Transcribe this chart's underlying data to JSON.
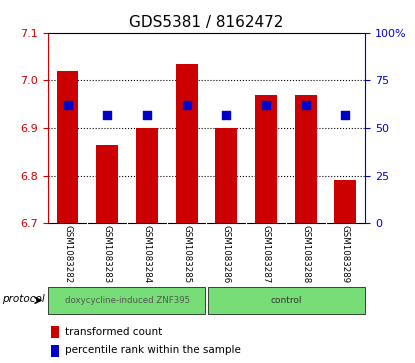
{
  "title": "GDS5381 / 8162472",
  "samples": [
    "GSM1083282",
    "GSM1083283",
    "GSM1083284",
    "GSM1083285",
    "GSM1083286",
    "GSM1083287",
    "GSM1083288",
    "GSM1083289"
  ],
  "bar_values": [
    7.02,
    6.865,
    6.9,
    7.035,
    6.9,
    6.97,
    6.97,
    6.79
  ],
  "percentile_values": [
    62,
    57,
    57,
    62,
    57,
    62,
    62,
    57
  ],
  "bar_bottom": 6.7,
  "ylim_left": [
    6.7,
    7.1
  ],
  "ylim_right": [
    0,
    100
  ],
  "yticks_left": [
    6.7,
    6.8,
    6.9,
    7.0,
    7.1
  ],
  "yticks_right": [
    0,
    25,
    50,
    75,
    100
  ],
  "ytick_labels_right": [
    "0",
    "25",
    "50",
    "75",
    "100%"
  ],
  "bar_color": "#CC0000",
  "percentile_color": "#0000CC",
  "group1_label": "doxycycline-induced ZNF395",
  "group2_label": "control",
  "group_color": "#77DD77",
  "legend_bar_label": "transformed count",
  "legend_pct_label": "percentile rank within the sample",
  "protocol_label": "protocol",
  "tick_color_left": "#CC0000",
  "tick_color_right": "#0000CC",
  "bg_color": "#FFFFFF",
  "xticklabel_bg": "#C8C8C8",
  "title_fontsize": 11,
  "bar_width": 0.55,
  "percentile_marker_size": 35,
  "n_group1": 4,
  "n_group2": 4
}
